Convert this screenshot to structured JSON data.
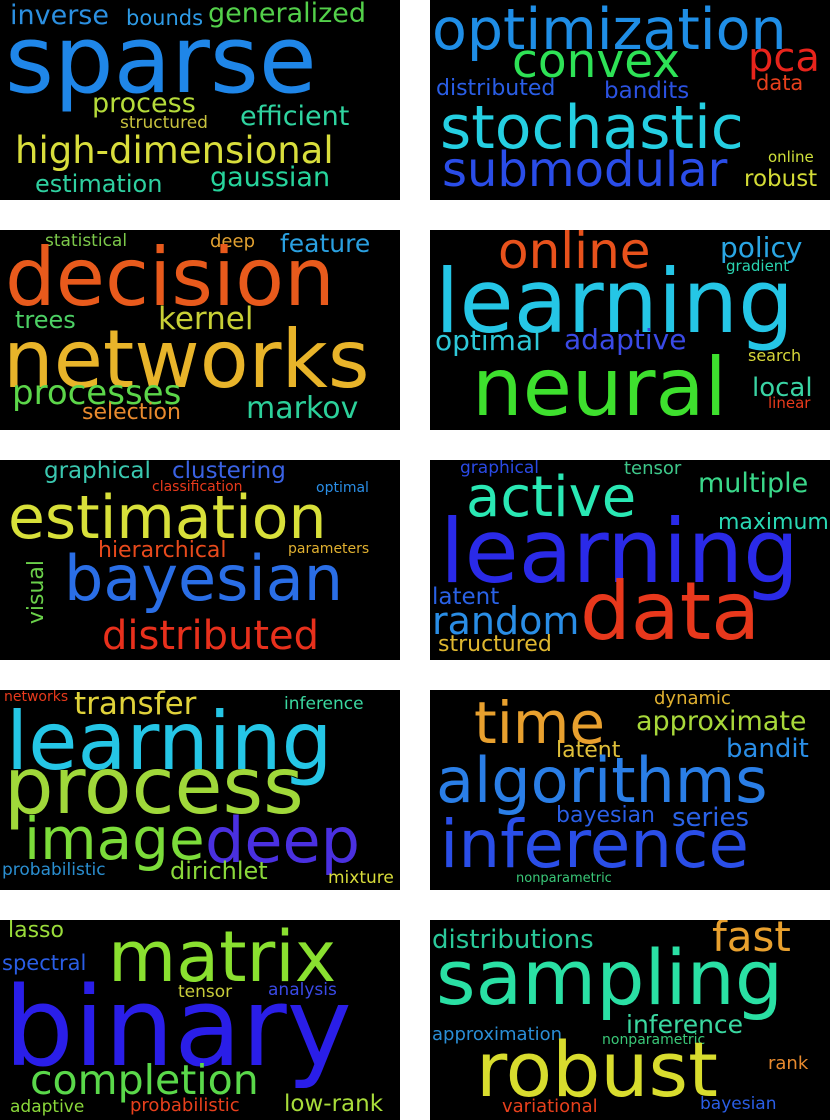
{
  "clouds": [
    {
      "words": [
        "inverse",
        "bounds",
        "generalized",
        "sparse",
        "process",
        "efficient",
        "structured",
        "high-dimensional",
        "estimation",
        "gaussian"
      ]
    },
    {
      "words": [
        "optimization",
        "convex",
        "pca",
        "distributed",
        "bandits",
        "data",
        "stochastic",
        "submodular",
        "online",
        "robust"
      ]
    },
    {
      "words": [
        "statistical",
        "deep",
        "feature",
        "decision",
        "trees",
        "kernel",
        "networks",
        "processes",
        "selection",
        "markov"
      ]
    },
    {
      "words": [
        "online",
        "policy",
        "gradient",
        "learning",
        "optimal",
        "adaptive",
        "neural",
        "search",
        "local",
        "linear"
      ]
    },
    {
      "words": [
        "graphical",
        "clustering",
        "classification",
        "optimal",
        "estimation",
        "hierarchical",
        "parameters",
        "visual",
        "bayesian",
        "distributed"
      ]
    },
    {
      "words": [
        "graphical",
        "tensor",
        "active",
        "multiple",
        "maximum",
        "learning",
        "latent",
        "random",
        "data",
        "structured"
      ]
    },
    {
      "words": [
        "networks",
        "transfer",
        "inference",
        "learning",
        "process",
        "image",
        "deep",
        "probabilistic",
        "dirichlet",
        "mixture"
      ]
    },
    {
      "words": [
        "dynamic",
        "time",
        "approximate",
        "latent",
        "bandit",
        "algorithms",
        "bayesian",
        "series",
        "inference",
        "nonparametric"
      ]
    },
    {
      "words": [
        "lasso",
        "matrix",
        "spectral",
        "tensor",
        "analysis",
        "binary",
        "completion",
        "adaptive",
        "probabilistic",
        "low-rank"
      ]
    },
    {
      "words": [
        "distributions",
        "fast",
        "sampling",
        "approximation",
        "inference",
        "nonparametric",
        "rank",
        "robust",
        "variational",
        "bayesian"
      ]
    }
  ]
}
